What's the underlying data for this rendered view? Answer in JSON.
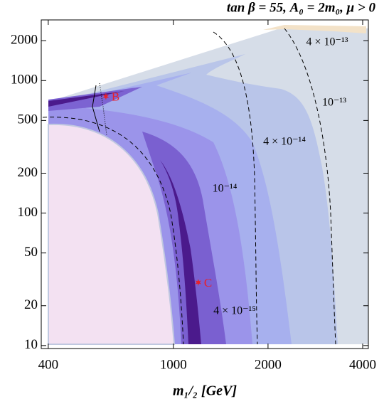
{
  "chart_data": {
    "type": "contour",
    "title": "tan β = 55, A₀ = 2m₀, μ > 0",
    "x_label": "m₁/₂ [GeV]",
    "log_x": true,
    "log_y": true,
    "xlim": [
      380,
      4170
    ],
    "ylim": [
      9.5,
      2870
    ],
    "xticks": [
      400,
      1000,
      2000,
      4000
    ],
    "yticks": [
      10,
      20,
      50,
      100,
      200,
      500,
      1000,
      2000
    ],
    "annotations": [
      "4 × 10⁻¹³",
      "10⁻¹³",
      "4 × 10⁻¹⁴",
      "10⁻¹⁴",
      "4 × 10⁻¹⁵"
    ],
    "points": [
      {
        "name": "B",
        "x": 610,
        "y": 760,
        "color": "#e8202a"
      },
      {
        "name": "C",
        "x": 1200,
        "y": 30,
        "color": "#e8202a"
      }
    ]
  }
}
